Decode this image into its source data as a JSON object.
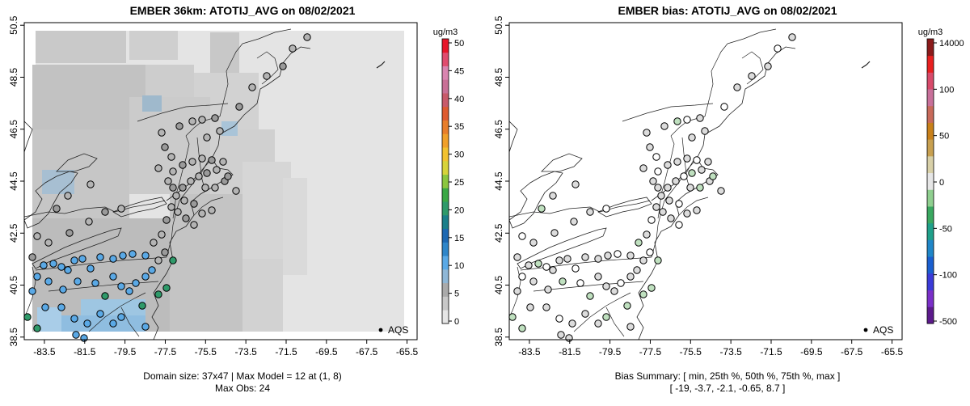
{
  "panels": [
    {
      "id": "model",
      "title": "EMBER 36km: ATOTIJ_AVG on 08/02/2021",
      "caption_lines": [
        "Domain size: 37x47 | Max Model = 12 at (1, 8)",
        "Max Obs: 24"
      ],
      "colorbar": {
        "unit": "ug/m3",
        "ticks": [
          "0",
          "5",
          "10",
          "15",
          "20",
          "25",
          "30",
          "35",
          "40",
          "45",
          "50"
        ],
        "colors": [
          "#e6e6e6",
          "#c8c8c8",
          "#aaaaaa",
          "#8fb7d6",
          "#5aa9e6",
          "#2f86c9",
          "#1d68b2",
          "#1b7f8a",
          "#2f9a6a",
          "#3aa845",
          "#8bc63e",
          "#d7d33a",
          "#f2c230",
          "#f0a02a",
          "#e87e2a",
          "#de5a2f",
          "#c85a6a",
          "#c97096",
          "#d985b0",
          "#e04c6e",
          "#e8162a"
        ]
      },
      "legend": "AQS"
    },
    {
      "id": "bias",
      "title": "EMBER bias: ATOTIJ_AVG on 08/02/2021",
      "caption_lines": [
        "Bias Summary: [ min, 25th %, 50th %, 75th %, max ]",
        "[ -19,   -3.7,   -2.1,   -0.65,   8.7 ]"
      ],
      "colorbar": {
        "unit": "ug/m3",
        "ticks": [
          "-500",
          "-100",
          "-50",
          "0",
          "50",
          "100",
          "14000"
        ],
        "colors": [
          "#5c1a8c",
          "#7a2fc8",
          "#3b3bd8",
          "#1a5fd0",
          "#1f86c8",
          "#1fa08a",
          "#3aa860",
          "#8fcf8f",
          "#e6e6e6",
          "#d8d0a8",
          "#c8a050",
          "#c8801a",
          "#c86a5a",
          "#c8709a",
          "#d84a6a",
          "#e82020",
          "#8b1a1a"
        ]
      },
      "legend": "AQS"
    }
  ],
  "axes": {
    "x_ticks": [
      "-83.5",
      "-81.5",
      "-79.5",
      "-77.5",
      "-75.5",
      "-73.5",
      "-71.5",
      "-69.5",
      "-67.5",
      "-65.5"
    ],
    "y_ticks": [
      "38.5",
      "40.5",
      "42.5",
      "44.5",
      "46.5",
      "48.5",
      "50.5"
    ],
    "xlim": [
      -84.5,
      -65.0
    ],
    "ylim": [
      38.4,
      50.6
    ]
  },
  "colors": {
    "frame": "#000000",
    "coast": "#222222",
    "model_bg": "#e4e4e4"
  }
}
